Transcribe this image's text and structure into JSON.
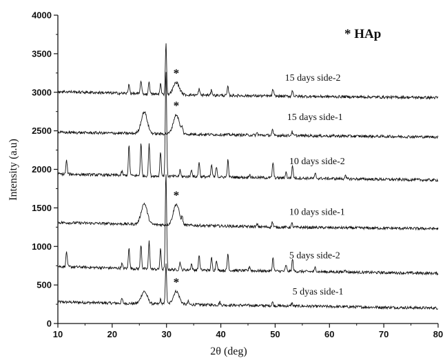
{
  "chart_data": {
    "type": "line",
    "xlabel": "2θ (deg)",
    "ylabel": "Intensity (a.u)",
    "xlim": [
      10,
      80
    ],
    "ylim": [
      0,
      4000
    ],
    "xticks": [
      10,
      20,
      30,
      40,
      50,
      60,
      70,
      80
    ],
    "yticks": [
      0,
      500,
      1000,
      1500,
      2000,
      2500,
      3000,
      3500,
      4000
    ],
    "annotation": "* HAp",
    "marker_symbol": "*",
    "line_color": "#111111",
    "series": [
      {
        "name": "5 dyas side-1",
        "label": "5 dyas side-1",
        "baseline": [
          [
            10,
            280
          ],
          [
            30,
            250
          ],
          [
            50,
            230
          ],
          [
            80,
            200
          ]
        ],
        "peaks": [
          [
            21.8,
            60
          ],
          [
            25.9,
            160
          ],
          [
            28.9,
            60
          ],
          [
            29.9,
            520
          ],
          [
            31.8,
            170
          ],
          [
            34.0,
            40
          ],
          [
            39.8,
            40
          ],
          [
            49.5,
            50
          ],
          [
            53.1,
            40
          ]
        ],
        "star_x": 31.8
      },
      {
        "name": "5 days side-2",
        "label": "5 days side-2",
        "baseline": [
          [
            10,
            740
          ],
          [
            30,
            700
          ],
          [
            50,
            680
          ],
          [
            80,
            650
          ]
        ],
        "peaks": [
          [
            11.6,
            200
          ],
          [
            21.8,
            60
          ],
          [
            23.1,
            280
          ],
          [
            25.3,
            320
          ],
          [
            26.8,
            360
          ],
          [
            28.9,
            260
          ],
          [
            29.9,
            1260
          ],
          [
            32.5,
            100
          ],
          [
            34.6,
            80
          ],
          [
            36.0,
            200
          ],
          [
            38.3,
            160
          ],
          [
            39.2,
            140
          ],
          [
            41.3,
            220
          ],
          [
            45.3,
            60
          ],
          [
            49.6,
            180
          ],
          [
            52.0,
            80
          ],
          [
            53.2,
            160
          ],
          [
            57.4,
            60
          ],
          [
            62.9,
            40
          ]
        ],
        "star_x": null
      },
      {
        "name": "10 days side-1",
        "label": "10 days side-1",
        "baseline": [
          [
            10,
            1310
          ],
          [
            30,
            1280
          ],
          [
            50,
            1250
          ],
          [
            80,
            1230
          ]
        ],
        "peaks": [
          [
            25.9,
            270
          ],
          [
            31.8,
            270
          ],
          [
            32.9,
            80
          ],
          [
            46.7,
            30
          ],
          [
            49.5,
            70
          ],
          [
            53.1,
            50
          ]
        ],
        "star_x": 31.8
      },
      {
        "name": "10 days side-2",
        "label": "10 days side-2",
        "baseline": [
          [
            10,
            1940
          ],
          [
            30,
            1910
          ],
          [
            50,
            1890
          ],
          [
            80,
            1860
          ]
        ],
        "peaks": [
          [
            11.6,
            180
          ],
          [
            21.8,
            50
          ],
          [
            23.1,
            390
          ],
          [
            25.3,
            420
          ],
          [
            26.8,
            420
          ],
          [
            28.9,
            320
          ],
          [
            29.9,
            1380
          ],
          [
            32.5,
            80
          ],
          [
            34.6,
            100
          ],
          [
            36.0,
            200
          ],
          [
            38.3,
            160
          ],
          [
            39.2,
            140
          ],
          [
            41.3,
            220
          ],
          [
            45.3,
            40
          ],
          [
            49.6,
            200
          ],
          [
            52.0,
            80
          ],
          [
            53.2,
            160
          ],
          [
            57.4,
            60
          ],
          [
            62.9,
            40
          ]
        ],
        "star_x": null
      },
      {
        "name": "15 days side-1",
        "label": "15 days side-1",
        "baseline": [
          [
            10,
            2480
          ],
          [
            30,
            2460
          ],
          [
            50,
            2440
          ],
          [
            80,
            2420
          ]
        ],
        "peaks": [
          [
            25.9,
            280
          ],
          [
            31.8,
            250
          ],
          [
            32.9,
            70
          ],
          [
            46.7,
            30
          ],
          [
            49.5,
            70
          ],
          [
            53.1,
            50
          ]
        ],
        "star_x": 31.8
      },
      {
        "name": "15 days side-2",
        "label": "15 days side-2",
        "baseline": [
          [
            10,
            3010
          ],
          [
            30,
            2970
          ],
          [
            50,
            2950
          ],
          [
            80,
            2930
          ]
        ],
        "peaks": [
          [
            23.1,
            130
          ],
          [
            25.3,
            180
          ],
          [
            26.8,
            170
          ],
          [
            28.9,
            140
          ],
          [
            29.9,
            660
          ],
          [
            31.8,
            160
          ],
          [
            36.0,
            80
          ],
          [
            38.3,
            70
          ],
          [
            41.3,
            110
          ],
          [
            49.6,
            90
          ],
          [
            53.2,
            80
          ]
        ],
        "star_x": 31.8
      }
    ]
  }
}
